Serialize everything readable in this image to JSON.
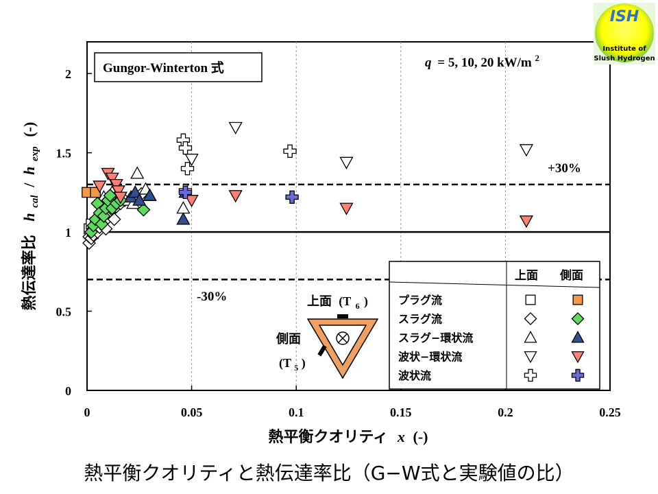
{
  "chart_data": {
    "type": "scatter",
    "xlabel_main": "熱平衡クオリティ",
    "xlabel_var": "x",
    "xlabel_unit": "(-)",
    "ylabel_main": "熱伝達率比",
    "ylabel_h1": "h",
    "ylabel_sub1": "cal",
    "ylabel_slash": "/",
    "ylabel_h2": "h",
    "ylabel_sub2": "exp",
    "ylabel_unit": "(-)",
    "xlim": [
      0,
      0.25
    ],
    "ylim": [
      0,
      2.2
    ],
    "xticks": [
      0,
      0.05,
      0.1,
      0.15,
      0.2,
      0.25
    ],
    "xtick_labels": [
      "0",
      "0.05",
      "0.1",
      "0.15",
      "0.2",
      "0.25"
    ],
    "yticks": [
      0,
      0.5,
      1,
      1.5,
      2
    ],
    "ytick_labels": [
      "0",
      "0.5",
      "1",
      "1.5",
      "2"
    ],
    "grid": "vertical dashed",
    "reference_lines": [
      {
        "y": 1.0,
        "style": "solid"
      },
      {
        "y": 1.3,
        "style": "dashed",
        "label": "+30%"
      },
      {
        "y": 0.7,
        "style": "dashed",
        "label": "-30%"
      }
    ],
    "correlation_box": "Gungor-Winterton 式",
    "condition_q": "q",
    "condition_text": "= 5, 10, 20 kW/m",
    "condition_sup": "2",
    "legend": {
      "placement": "bottom-right",
      "col_top": "上面",
      "col_side": "側面",
      "rows": [
        {
          "label": "プラグ流",
          "shape": "square"
        },
        {
          "label": "スラグ流",
          "shape": "diamond"
        },
        {
          "label": "スラグ−環状流",
          "shape": "triangle-up"
        },
        {
          "label": "波状−環状流",
          "shape": "triangle-down"
        },
        {
          "label": "波状流",
          "shape": "cross"
        }
      ]
    },
    "series": [
      {
        "name": "プラグ流 上面",
        "shape": "square",
        "fill": "#ffffff",
        "x": [
          0.001,
          0.002,
          0.003,
          0.004
        ],
        "y": [
          1.02,
          1.05,
          0.99,
          1.06
        ]
      },
      {
        "name": "プラグ流 側面",
        "shape": "square",
        "fill": "#f29a4a",
        "x": [
          0.0,
          0.004
        ],
        "y": [
          1.25,
          1.25
        ]
      },
      {
        "name": "スラグ流 上面",
        "shape": "diamond",
        "fill": "#ffffff",
        "x": [
          0.001,
          0.001,
          0.002,
          0.002,
          0.003,
          0.003,
          0.004,
          0.005,
          0.005,
          0.006,
          0.007,
          0.008,
          0.009,
          0.01,
          0.011,
          0.012,
          0.013,
          0.014,
          0.016,
          0.018,
          0.022,
          0.026
        ],
        "y": [
          0.93,
          0.97,
          0.96,
          1.0,
          1.02,
          0.98,
          1.04,
          1.0,
          1.07,
          1.03,
          1.06,
          1.1,
          1.02,
          1.09,
          1.12,
          1.14,
          1.08,
          1.16,
          1.18,
          1.2,
          1.22,
          1.24
        ]
      },
      {
        "name": "スラグ流 側面",
        "shape": "diamond",
        "fill": "#5ddb5d",
        "x": [
          0.002,
          0.003,
          0.004,
          0.005,
          0.006,
          0.007,
          0.008,
          0.009,
          0.01,
          0.011,
          0.012,
          0.014,
          0.016,
          0.027
        ],
        "y": [
          1.0,
          1.04,
          1.08,
          1.18,
          1.12,
          1.05,
          1.1,
          1.15,
          1.2,
          1.23,
          1.15,
          1.18,
          1.2,
          1.14
        ]
      },
      {
        "name": "スラグ−環状流 上面",
        "shape": "triangle-up",
        "fill": "#ffffff",
        "x": [
          0.008,
          0.012,
          0.02,
          0.022,
          0.024,
          0.028,
          0.03,
          0.046
        ],
        "y": [
          1.22,
          1.25,
          1.2,
          1.18,
          1.37,
          1.27,
          1.23,
          1.15
        ]
      },
      {
        "name": "スラグ−環状流 側面",
        "shape": "triangle-up",
        "fill": "#2f4f8f",
        "x": [
          0.021,
          0.023,
          0.025,
          0.03,
          0.046,
          0.047
        ],
        "y": [
          1.22,
          1.25,
          1.2,
          1.23,
          1.08,
          1.25
        ]
      },
      {
        "name": "波状−環状流 上面",
        "shape": "triangle-down",
        "fill": "#ffffff",
        "x": [
          0.05,
          0.071,
          0.124,
          0.21
        ],
        "y": [
          1.46,
          1.66,
          1.44,
          1.52
        ]
      },
      {
        "name": "波状−環状流 側面",
        "shape": "triangle-down",
        "fill": "#ff7f75",
        "x": [
          0.006,
          0.01,
          0.012,
          0.014,
          0.015,
          0.016,
          0.05,
          0.071,
          0.124,
          0.21
        ],
        "y": [
          1.29,
          1.37,
          1.34,
          1.3,
          1.26,
          1.22,
          1.2,
          1.23,
          1.15,
          1.07
        ]
      },
      {
        "name": "波状流 上面",
        "shape": "cross",
        "fill": "#ffffff",
        "x": [
          0.046,
          0.047,
          0.048,
          0.047,
          0.097
        ],
        "y": [
          1.58,
          1.53,
          1.4,
          1.26,
          1.51
        ]
      },
      {
        "name": "波状流 側面",
        "shape": "cross",
        "fill": "#6a6adb",
        "x": [
          0.047,
          0.098
        ],
        "y": [
          1.25,
          1.22
        ]
      }
    ]
  },
  "inset": {
    "top_label": "上面",
    "top_sensor": "(T",
    "top_sensor_sub": "6",
    "side_label": "側面",
    "side_sensor": "(T",
    "side_sensor_sub": "5"
  },
  "logo": {
    "text": "ISH",
    "line1": "Institute of",
    "line2": "Slush Hydrogen"
  },
  "caption": "熱平衡クオリティと熱伝達率比（G−W式と実験値の比）"
}
